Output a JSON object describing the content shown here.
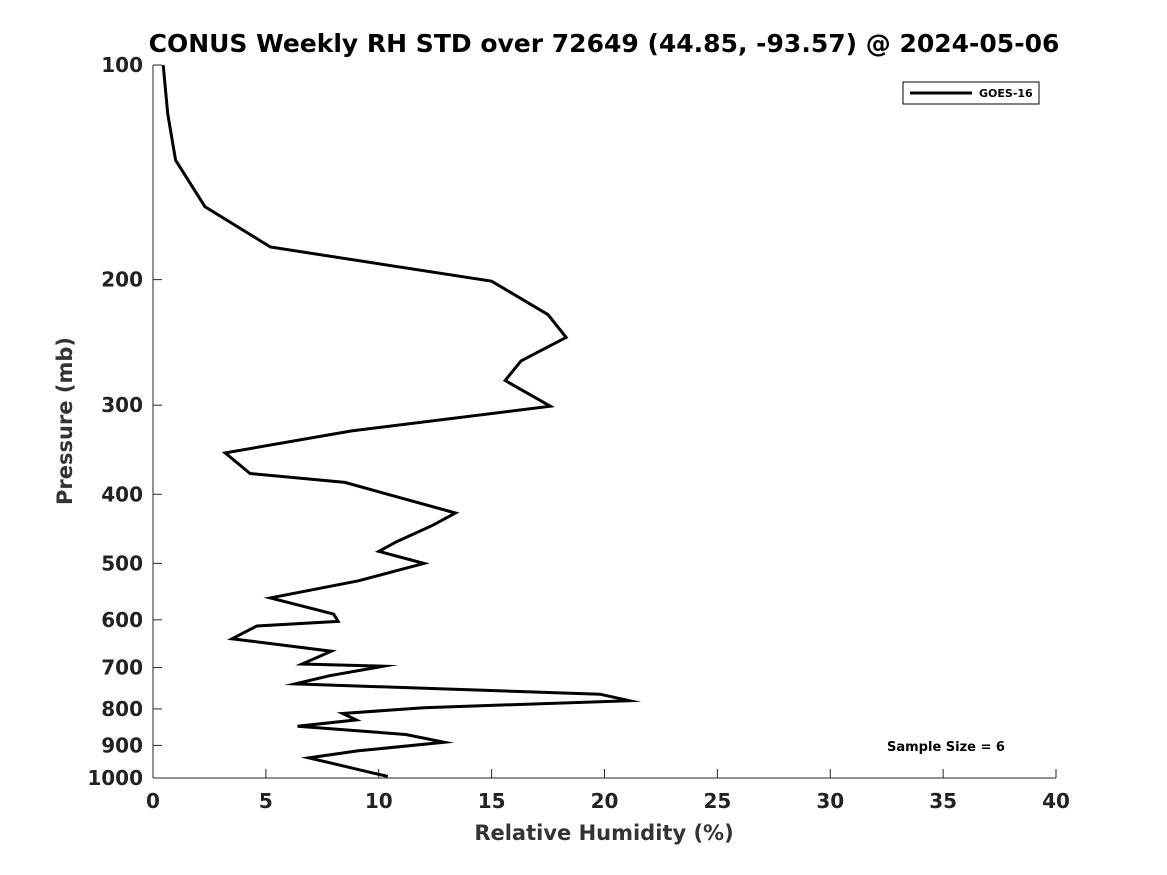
{
  "chart_data": {
    "type": "line",
    "title": "CONUS Weekly RH STD over 72649 (44.85, -93.57) @ 2024-05-06",
    "xlabel": "Relative Humidity (%)",
    "ylabel": "Pressure (mb)",
    "xlim": [
      0,
      40
    ],
    "ylim": [
      100,
      1000
    ],
    "yscale": "log",
    "yreversed": true,
    "xticks": [
      0,
      5,
      10,
      15,
      20,
      25,
      30,
      35,
      40
    ],
    "xtick_labels": [
      "0",
      "5",
      "10",
      "15",
      "20",
      "25",
      "30",
      "35",
      "40"
    ],
    "yticks": [
      100,
      200,
      300,
      400,
      500,
      600,
      700,
      800,
      900,
      1000
    ],
    "ytick_labels": [
      "100",
      "200",
      "300",
      "400",
      "500",
      "600",
      "700",
      "800",
      "900",
      "1000"
    ],
    "legend_position": "top-right",
    "annotation": "Sample Size = 6",
    "series": [
      {
        "name": "GOES-16",
        "color": "#000000",
        "x": [
          0.45,
          0.65,
          1.0,
          2.3,
          5.2,
          15.0,
          17.5,
          18.3,
          16.3,
          15.6,
          17.6,
          8.8,
          3.2,
          4.3,
          8.5,
          13.4,
          12.4,
          10.8,
          10.0,
          12.0,
          9.1,
          5.2,
          8.0,
          8.2,
          4.6,
          3.5,
          7.9,
          6.6,
          10.2,
          7.8,
          6.3,
          19.8,
          21.1,
          12.0,
          8.4,
          9.0,
          6.4,
          11.2,
          12.9,
          9.1,
          6.9,
          7.7,
          9.8,
          10.4
        ],
        "y": [
          100,
          117,
          136,
          158,
          180,
          201,
          224,
          241,
          260,
          277,
          301,
          326,
          350,
          374,
          385,
          425,
          442,
          466,
          481,
          500,
          529,
          559,
          589,
          603,
          612,
          638,
          664,
          692,
          697,
          719,
          738,
          763,
          779,
          797,
          812,
          829,
          846,
          869,
          891,
          916,
          937,
          950,
          985,
          995
        ]
      }
    ]
  }
}
